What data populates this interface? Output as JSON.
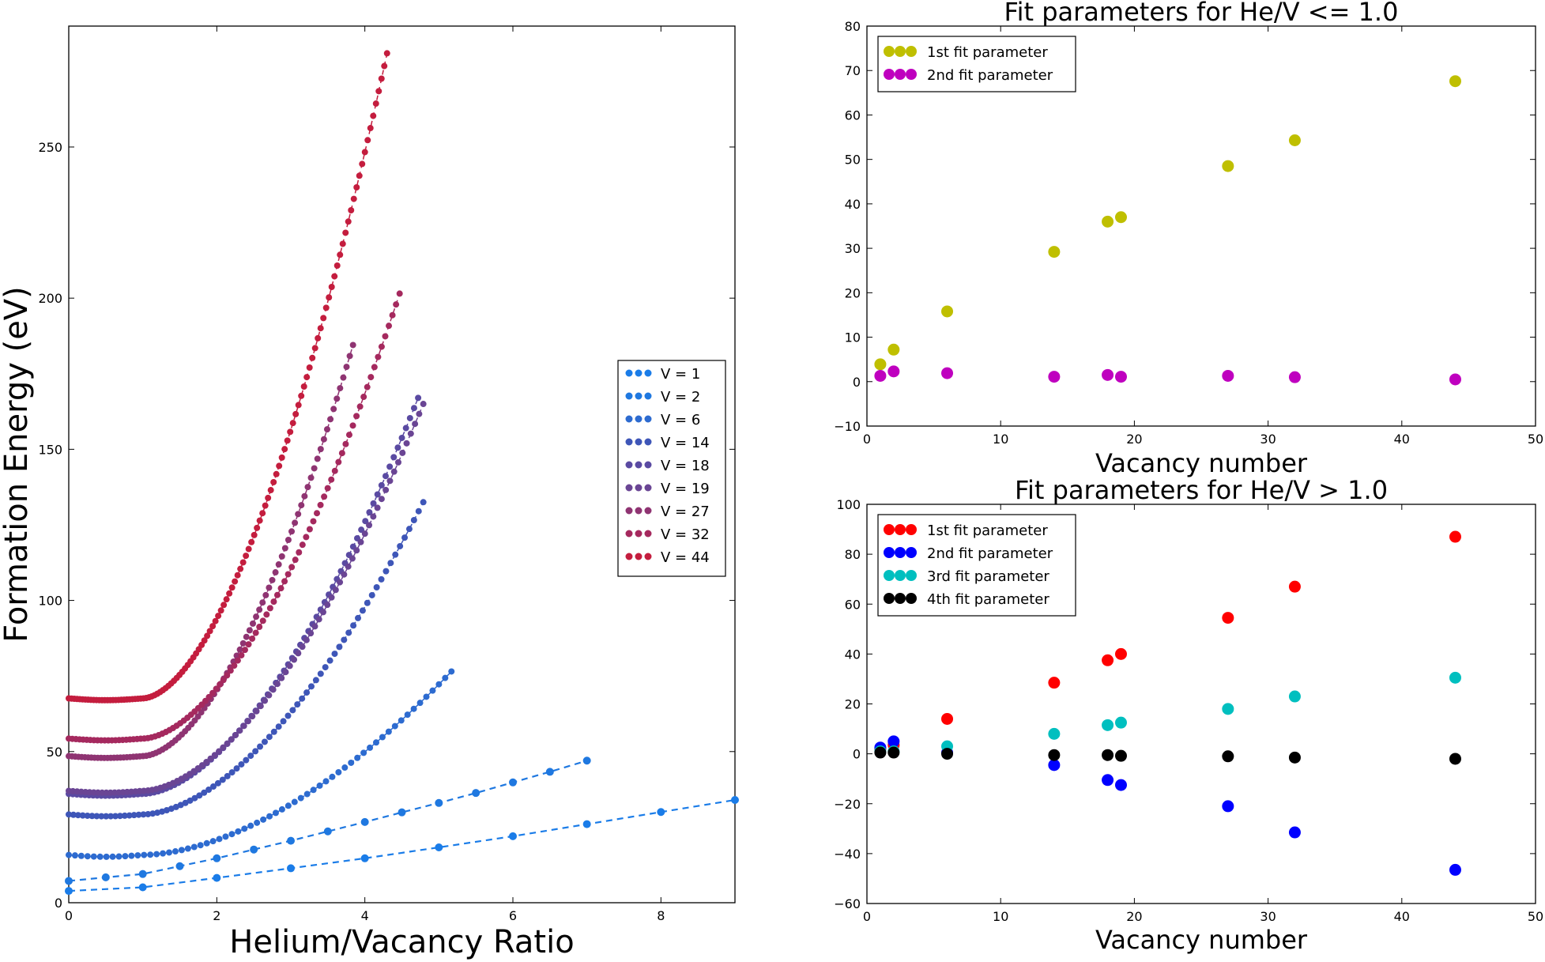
{
  "chart_data": [
    {
      "type": "line",
      "title": "",
      "xlabel": "Helium/Vacancy Ratio",
      "ylabel": "Formation Energy (eV)",
      "xlim": [
        0,
        9
      ],
      "ylim": [
        0,
        290
      ],
      "xticks": [
        "0",
        "2",
        "4",
        "6",
        "8"
      ],
      "yticks": [
        "0",
        "50",
        "100",
        "150",
        "200",
        "250"
      ],
      "legend_position": "right",
      "series": [
        {
          "name": "V = 1",
          "color": "#1a7ce8",
          "x": [
            0,
            1,
            2,
            3,
            4,
            5,
            6,
            7,
            8,
            9
          ],
          "y": [
            3.9,
            5.1,
            8.2,
            11.4,
            14.7,
            18.3,
            22.0,
            26.0,
            30.0,
            34.0
          ]
        },
        {
          "name": "V = 2",
          "color": "#1f78e0",
          "x": [
            0,
            0.5,
            1,
            1.5,
            2,
            2.5,
            3,
            3.5,
            4,
            4.5,
            5,
            5.5,
            6,
            6.5,
            7
          ],
          "y": [
            7.2,
            8.4,
            9.5,
            12.1,
            14.7,
            17.6,
            20.5,
            23.6,
            26.7,
            29.9,
            33.0,
            36.3,
            39.8,
            43.3,
            47.0
          ]
        },
        {
          "name": "V = 6",
          "color": "#2d6bd0",
          "y0": 15.8,
          "knee": 1.0,
          "xmax": 5.17,
          "ymax": 76.5
        },
        {
          "name": "V = 14",
          "color": "#3e56b8",
          "y0": 29.2,
          "knee": 1.0,
          "xmax": 4.79,
          "ymax": 132.5
        },
        {
          "name": "V = 18",
          "color": "#5a4aa2",
          "y0": 36.0,
          "knee": 1.0,
          "xmax": 4.72,
          "ymax": 167.0
        },
        {
          "name": "V = 19",
          "color": "#6a4594",
          "y0": 37.0,
          "knee": 1.0,
          "xmax": 4.79,
          "ymax": 165.0
        },
        {
          "name": "V = 27",
          "color": "#8f3472",
          "y0": 48.5,
          "knee": 1.0,
          "xmax": 3.84,
          "ymax": 184.5
        },
        {
          "name": "V = 32",
          "color": "#a5295e",
          "y0": 54.3,
          "knee": 1.0,
          "xmax": 4.47,
          "ymax": 201.5
        },
        {
          "name": "V = 44",
          "color": "#c41d3e",
          "y0": 67.6,
          "knee": 1.0,
          "xmax": 4.3,
          "ymax": 281.0
        }
      ]
    },
    {
      "type": "scatter",
      "title": "Fit parameters for He/V <= 1.0",
      "xlabel": "Vacancy number",
      "ylabel": "",
      "xlim": [
        0,
        50
      ],
      "ylim": [
        -10,
        80
      ],
      "xticks": [
        "0",
        "10",
        "20",
        "30",
        "40",
        "50"
      ],
      "yticks": [
        "−10",
        "0",
        "10",
        "20",
        "30",
        "40",
        "50",
        "60",
        "70",
        "80"
      ],
      "legend_position": "top-left",
      "x": [
        1,
        2,
        6,
        14,
        18,
        19,
        27,
        32,
        44
      ],
      "series": [
        {
          "name": "1st fit parameter",
          "color": "#bfbf00",
          "values": [
            3.9,
            7.2,
            15.8,
            29.2,
            36.0,
            37.0,
            48.5,
            54.3,
            67.6
          ]
        },
        {
          "name": "2nd fit parameter",
          "color": "#bf00bf",
          "values": [
            1.3,
            2.3,
            1.9,
            1.1,
            1.5,
            1.1,
            1.3,
            1.0,
            0.5
          ]
        }
      ]
    },
    {
      "type": "scatter",
      "title": "Fit parameters for He/V > 1.0",
      "xlabel": "Vacancy number",
      "ylabel": "",
      "xlim": [
        0,
        50
      ],
      "ylim": [
        -60,
        100
      ],
      "xticks": [
        "0",
        "10",
        "20",
        "30",
        "40",
        "50"
      ],
      "yticks": [
        "−60",
        "−40",
        "−20",
        "0",
        "20",
        "40",
        "60",
        "80",
        "100"
      ],
      "legend_position": "top-left",
      "x": [
        1,
        2,
        6,
        14,
        18,
        19,
        27,
        32,
        44
      ],
      "series": [
        {
          "name": "1st fit parameter",
          "color": "#ff0000",
          "values": [
            2.0,
            3.5,
            14.0,
            28.5,
            37.5,
            40.0,
            54.5,
            67.0,
            87.0
          ]
        },
        {
          "name": "2nd fit parameter",
          "color": "#0000ff",
          "values": [
            2.5,
            5.0,
            0.5,
            -4.5,
            -10.5,
            -12.5,
            -21.0,
            -31.5,
            -46.5
          ]
        },
        {
          "name": "3rd fit parameter",
          "color": "#00bfbf",
          "values": [
            1.0,
            1.0,
            3.0,
            8.0,
            11.5,
            12.5,
            18.0,
            23.0,
            30.5
          ]
        },
        {
          "name": "4th fit parameter",
          "color": "#000000",
          "values": [
            0.5,
            0.5,
            0.0,
            -0.5,
            -0.5,
            -0.8,
            -1.0,
            -1.5,
            -2.0
          ]
        }
      ]
    }
  ]
}
